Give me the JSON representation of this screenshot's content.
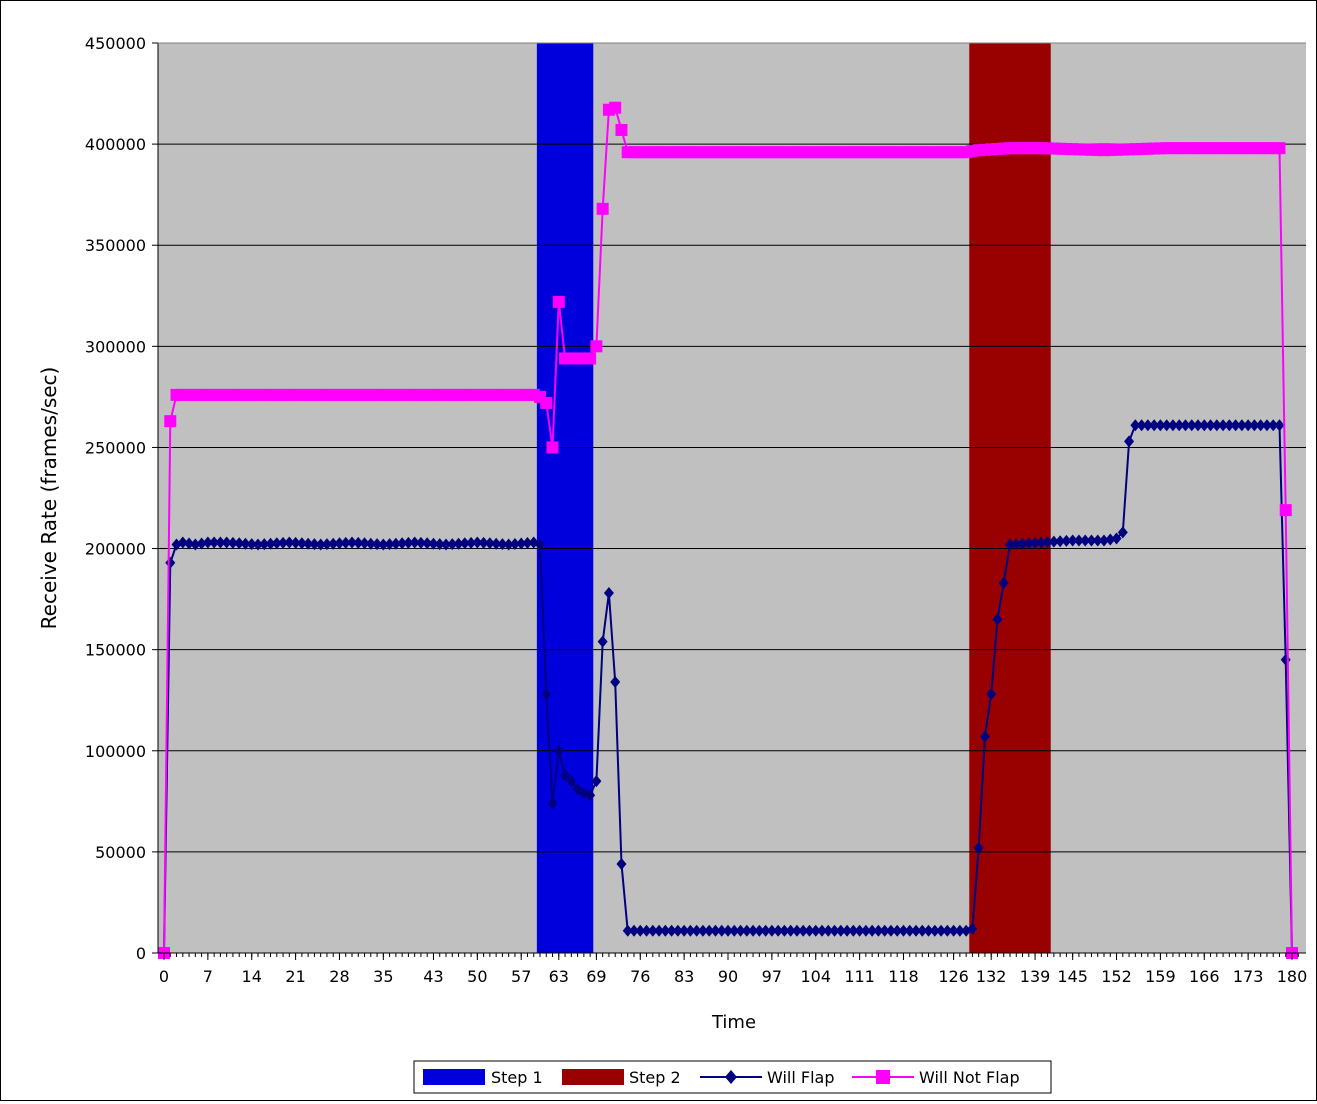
{
  "chart_data": {
    "type": "line",
    "title": "",
    "xlabel": "Time",
    "ylabel": "Receive Rate (frames/sec)",
    "ylim": [
      0,
      450000
    ],
    "xlim": [
      0,
      181
    ],
    "y_ticks": [
      "0",
      "50000",
      "100000",
      "150000",
      "200000",
      "250000",
      "300000",
      "350000",
      "400000",
      "450000"
    ],
    "x_tick_labels": [
      "0",
      "7",
      "14",
      "21",
      "28",
      "35",
      "43",
      "50",
      "57",
      "63",
      "69",
      "76",
      "83",
      "90",
      "97",
      "104",
      "111",
      "118",
      "126",
      "132",
      "139",
      "145",
      "152",
      "159",
      "166",
      "173",
      "180"
    ],
    "x_tick_values": [
      0,
      7,
      14,
      21,
      28,
      35,
      43,
      50,
      57,
      63,
      69,
      76,
      83,
      90,
      97,
      104,
      111,
      118,
      126,
      132,
      139,
      145,
      152,
      159,
      166,
      173,
      180
    ],
    "grid": true,
    "legend_position": "bottom",
    "bands": [
      {
        "name": "Step 1",
        "x_start": 59.5,
        "x_end": 68.5,
        "color": "#0000dd"
      },
      {
        "name": "Step 2",
        "x_start": 128.5,
        "x_end": 141.5,
        "color": "#990000"
      }
    ],
    "series": [
      {
        "name": "Will Flap",
        "color": "#000080",
        "marker": "diamond",
        "points": [
          [
            0,
            0
          ],
          [
            1,
            193000
          ],
          [
            2,
            202000
          ],
          [
            3,
            203000
          ],
          [
            5,
            202000
          ],
          [
            7,
            203000
          ],
          [
            10,
            203000
          ],
          [
            15,
            202000
          ],
          [
            20,
            203000
          ],
          [
            25,
            202000
          ],
          [
            30,
            203000
          ],
          [
            35,
            202000
          ],
          [
            40,
            203000
          ],
          [
            45,
            202000
          ],
          [
            50,
            203000
          ],
          [
            55,
            202000
          ],
          [
            59,
            203000
          ],
          [
            60,
            202000
          ],
          [
            61,
            128000
          ],
          [
            62,
            74000
          ],
          [
            63,
            100000
          ],
          [
            64,
            88000
          ],
          [
            65,
            85000
          ],
          [
            66,
            81000
          ],
          [
            67,
            79000
          ],
          [
            68,
            78000
          ],
          [
            69,
            85000
          ],
          [
            70,
            154000
          ],
          [
            71,
            178000
          ],
          [
            72,
            134000
          ],
          [
            73,
            44000
          ],
          [
            74,
            11000
          ],
          [
            80,
            11000
          ],
          [
            90,
            11000
          ],
          [
            100,
            11000
          ],
          [
            110,
            11000
          ],
          [
            120,
            11000
          ],
          [
            128,
            11000
          ],
          [
            129,
            12000
          ],
          [
            130,
            52000
          ],
          [
            131,
            107000
          ],
          [
            132,
            128000
          ],
          [
            133,
            165000
          ],
          [
            134,
            183000
          ],
          [
            135,
            202000
          ],
          [
            140,
            203000
          ],
          [
            145,
            204000
          ],
          [
            150,
            204000
          ],
          [
            152,
            205000
          ],
          [
            153,
            208000
          ],
          [
            154,
            253000
          ],
          [
            155,
            261000
          ],
          [
            160,
            261000
          ],
          [
            170,
            261000
          ],
          [
            178,
            261000
          ],
          [
            179,
            145000
          ],
          [
            180,
            0
          ]
        ]
      },
      {
        "name": "Will Not Flap",
        "color": "#ff00ff",
        "marker": "square",
        "points": [
          [
            0,
            0
          ],
          [
            1,
            263000
          ],
          [
            2,
            276000
          ],
          [
            5,
            276000
          ],
          [
            10,
            276000
          ],
          [
            15,
            276000
          ],
          [
            20,
            276000
          ],
          [
            25,
            276000
          ],
          [
            30,
            276000
          ],
          [
            35,
            276000
          ],
          [
            40,
            276000
          ],
          [
            45,
            276000
          ],
          [
            50,
            276000
          ],
          [
            55,
            276000
          ],
          [
            59,
            276000
          ],
          [
            60,
            275000
          ],
          [
            61,
            272000
          ],
          [
            62,
            250000
          ],
          [
            63,
            322000
          ],
          [
            64,
            294000
          ],
          [
            65,
            294000
          ],
          [
            66,
            294000
          ],
          [
            67,
            294000
          ],
          [
            68,
            294000
          ],
          [
            69,
            300000
          ],
          [
            70,
            368000
          ],
          [
            71,
            417000
          ],
          [
            72,
            418000
          ],
          [
            73,
            407000
          ],
          [
            74,
            396000
          ],
          [
            80,
            396000
          ],
          [
            90,
            396000
          ],
          [
            100,
            396000
          ],
          [
            110,
            396000
          ],
          [
            120,
            396000
          ],
          [
            128,
            396000
          ],
          [
            130,
            397000
          ],
          [
            135,
            398000
          ],
          [
            140,
            398000
          ],
          [
            150,
            397000
          ],
          [
            160,
            398000
          ],
          [
            170,
            398000
          ],
          [
            178,
            398000
          ],
          [
            179,
            219000
          ],
          [
            180,
            0
          ]
        ]
      }
    ]
  }
}
